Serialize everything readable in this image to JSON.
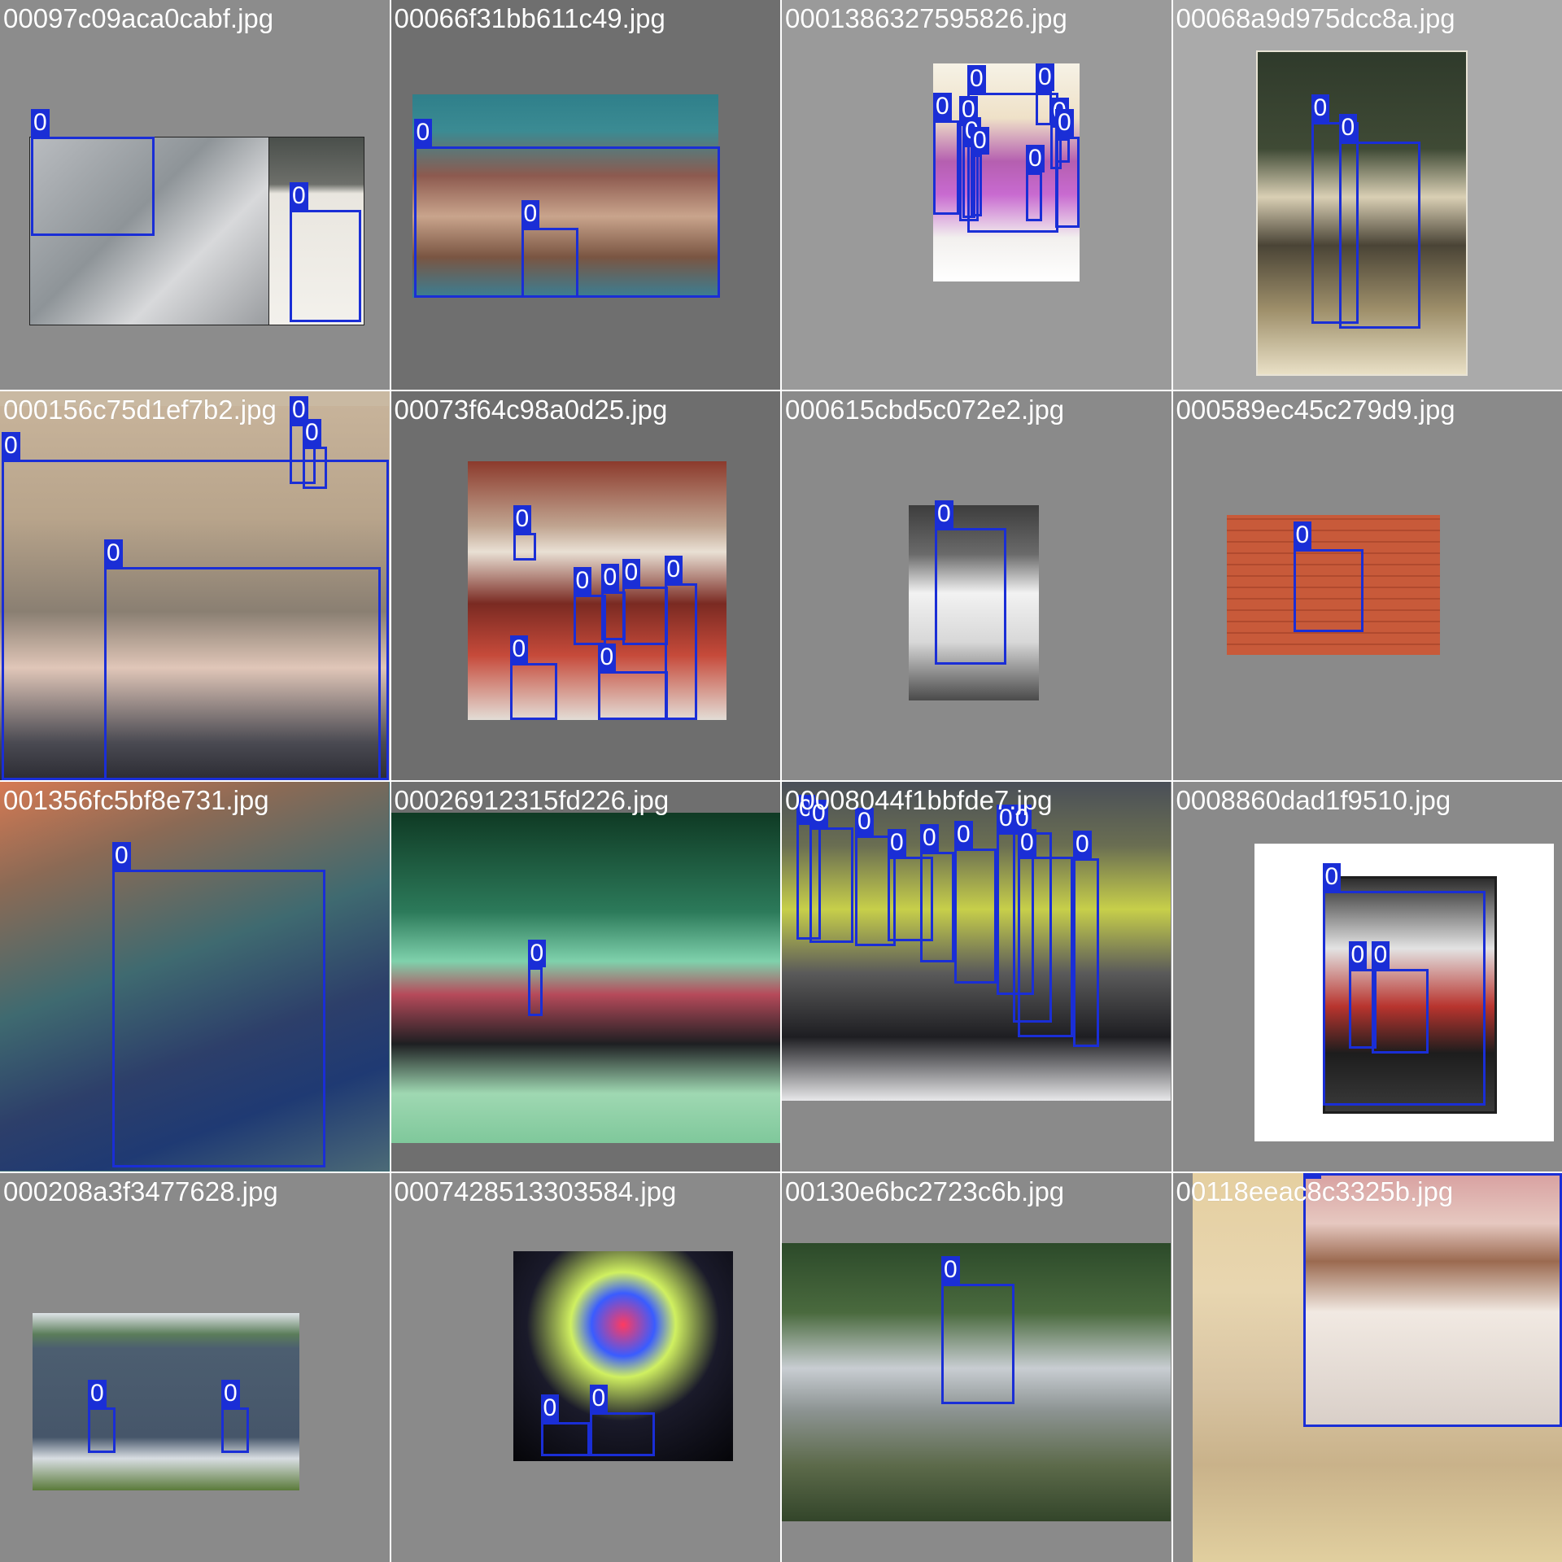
{
  "colors": {
    "box": "#1a2ed6",
    "label_bg": "#1a2ed6",
    "label_text": "#ffffff",
    "filename_text": "#ffffff"
  },
  "tiles": [
    {
      "filename": "00097c09aca0cabf.jpg",
      "labels": [
        "0",
        "0"
      ]
    },
    {
      "filename": "00066f31bb611c49.jpg",
      "labels": [
        "0",
        "0"
      ]
    },
    {
      "filename": "0001386327595826.jpg",
      "labels": [
        "0",
        "0",
        "0",
        "0",
        "0",
        "0",
        "0",
        "0",
        "0",
        "0"
      ]
    },
    {
      "filename": "00068a9d975dcc8a.jpg",
      "labels": [
        "0",
        "0"
      ]
    },
    {
      "filename": "000156c75d1ef7b2.jpg",
      "labels": [
        "0",
        "0",
        "0",
        "0"
      ]
    },
    {
      "filename": "00073f64c98a0d25.jpg",
      "labels": [
        "0",
        "0",
        "0",
        "0",
        "0",
        "0",
        "0"
      ]
    },
    {
      "filename": "000615cbd5c072e2.jpg",
      "labels": [
        "0"
      ]
    },
    {
      "filename": "000589ec45c279d9.jpg",
      "labels": [
        "0"
      ]
    },
    {
      "filename": "001356fc5bf8e731.jpg",
      "labels": [
        "0"
      ]
    },
    {
      "filename": "00026912315fd226.jpg",
      "labels": [
        "0"
      ]
    },
    {
      "filename": "00008044f1bbfde7.jpg",
      "labels": [
        "0",
        "0",
        "0",
        "0",
        "0",
        "0",
        "0",
        "0",
        "0",
        "0"
      ]
    },
    {
      "filename": "0008860dad1f9510.jpg",
      "labels": [
        "0",
        "0",
        "0"
      ]
    },
    {
      "filename": "000208a3f3477628.jpg",
      "labels": [
        "0",
        "0"
      ]
    },
    {
      "filename": "0007428513303584.jpg",
      "labels": [
        "0",
        "0"
      ]
    },
    {
      "filename": "00130e6bc2723c6b.jpg",
      "labels": [
        "0"
      ]
    },
    {
      "filename": "00118eeac8c3325b.jpg",
      "labels": [
        "0"
      ]
    }
  ]
}
